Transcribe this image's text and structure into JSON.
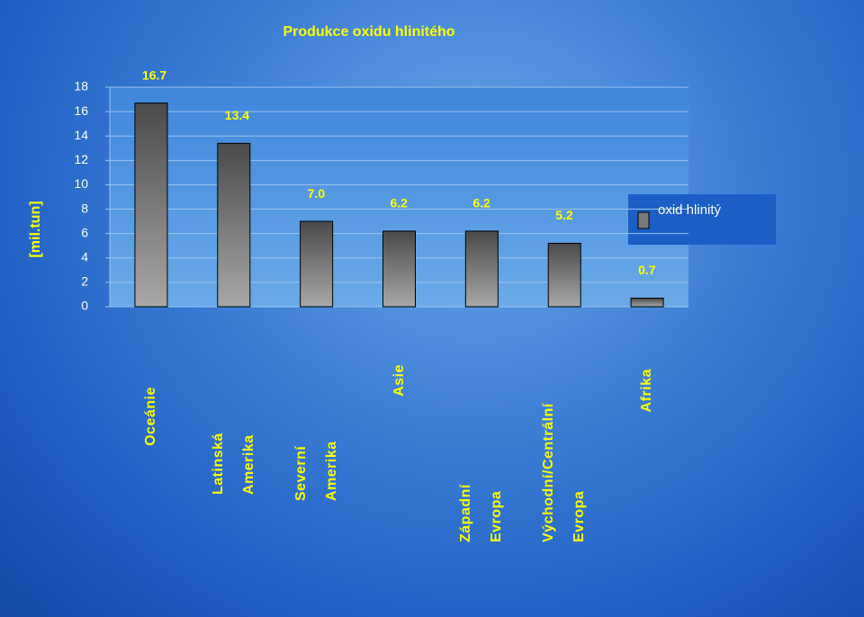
{
  "chart_data": {
    "type": "bar",
    "title": "Produkce oxidu hlinitého",
    "y_label": "[mil.tun]",
    "categories": [
      "Oceánie",
      "Latinská Amerika",
      "Severní Amerika",
      "Asie",
      "Západní Evropa",
      "Východní/Centrální Evropa",
      "Afrika"
    ],
    "series": [
      {
        "name": "oxid hlinitý",
        "color": "#7a7a7a",
        "values": [
          16.7,
          13.4,
          7.0,
          6.2,
          6.2,
          5.2,
          0.7
        ],
        "value_labels": [
          "16.7",
          "13.4",
          "7.0",
          "6.2",
          "6.2",
          "5.2",
          "0.7"
        ]
      }
    ],
    "ylim": [
      0,
      18
    ],
    "yticks": [
      0,
      2,
      4,
      6,
      8,
      10,
      12,
      14,
      16,
      18
    ],
    "grid": true,
    "legend": "right"
  }
}
